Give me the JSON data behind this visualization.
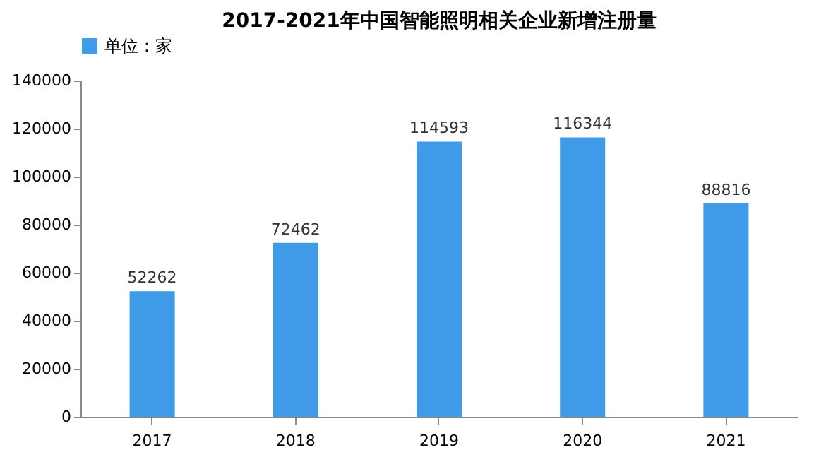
{
  "chart_data": {
    "type": "bar",
    "title": "2017-2021年中国智能照明相关企业新增注册量",
    "categories": [
      "2017",
      "2018",
      "2019",
      "2020",
      "2021"
    ],
    "series": [
      {
        "name": "单位：家",
        "color": "#3f9ae8",
        "values": [
          52262,
          72462,
          114593,
          116344,
          88816
        ]
      }
    ],
    "ylim": [
      0,
      140000
    ],
    "yticks": [
      0,
      20000,
      40000,
      60000,
      80000,
      100000,
      120000,
      140000
    ],
    "data_labels": true,
    "grid": false,
    "legend": "top"
  }
}
